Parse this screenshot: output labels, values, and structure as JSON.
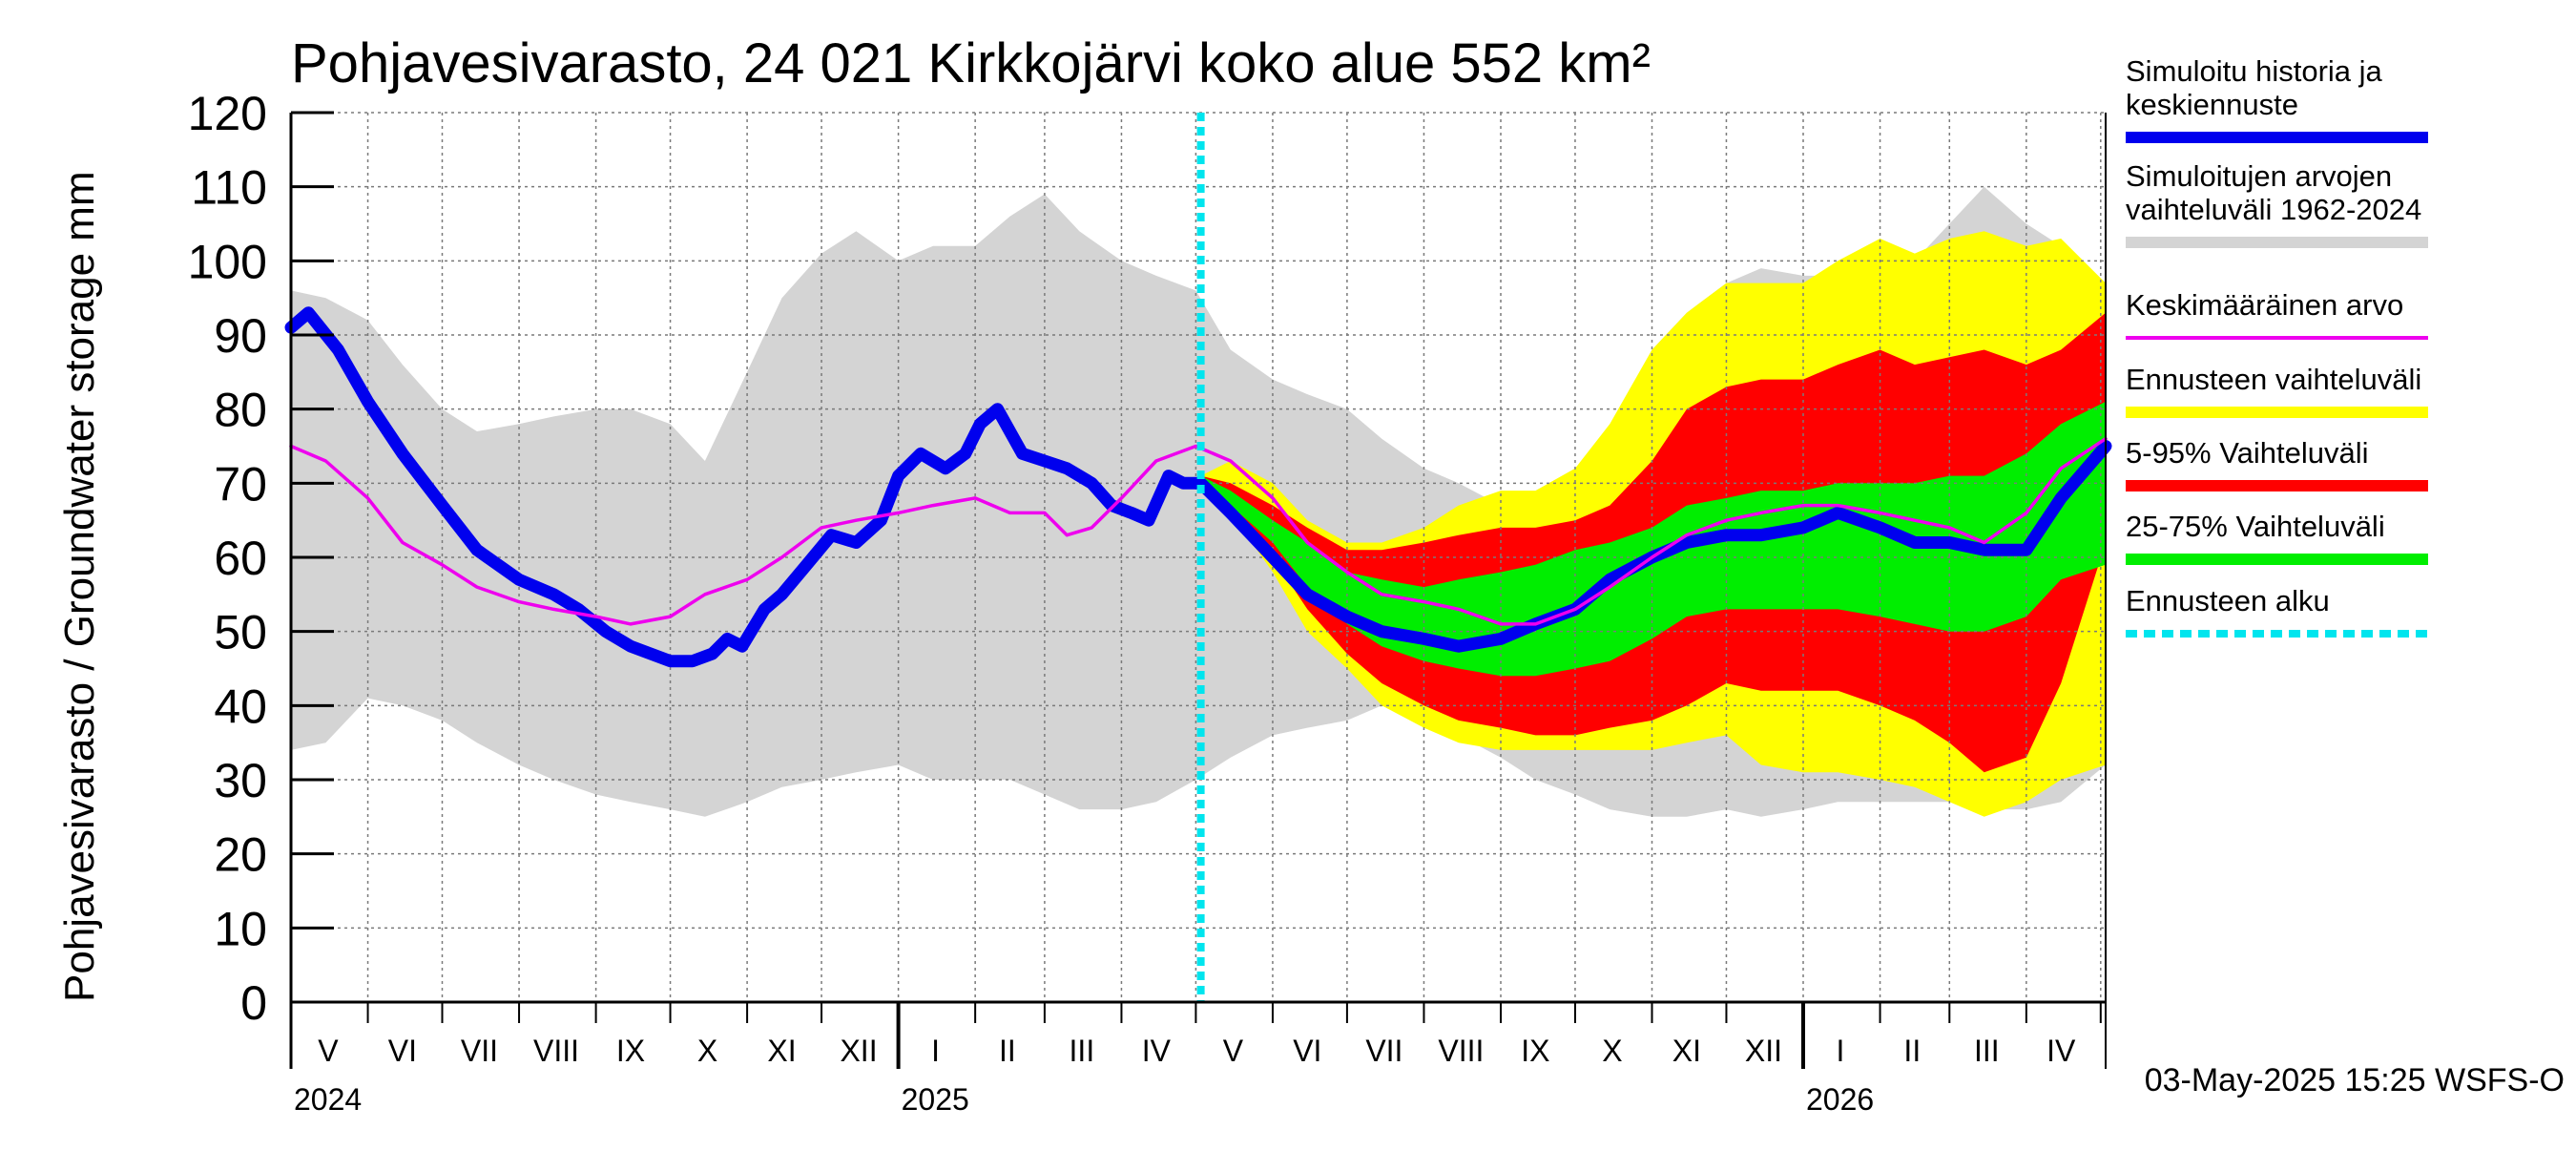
{
  "chart_data": {
    "type": "area",
    "title": "Pohjavesivarasto, 24 021 Kirkkojärvi koko alue 552 km²",
    "ylabel": "Pohjavesivarasto / Groundwater storage   mm",
    "ylim": [
      0,
      120
    ],
    "y_ticks": [
      "0",
      "10",
      "20",
      "30",
      "40",
      "50",
      "60",
      "70",
      "80",
      "90",
      "100",
      "110",
      "120"
    ],
    "grid": true,
    "legend_position": "right",
    "xlim": [
      "2024-05-01",
      "2026-05-03"
    ],
    "month_labels": [
      {
        "label": "V",
        "date": "2024-05-16"
      },
      {
        "label": "VI",
        "date": "2024-06-15"
      },
      {
        "label": "VII",
        "date": "2024-07-16"
      },
      {
        "label": "VIII",
        "date": "2024-08-16"
      },
      {
        "label": "IX",
        "date": "2024-09-15"
      },
      {
        "label": "X",
        "date": "2024-10-16"
      },
      {
        "label": "XI",
        "date": "2024-11-15"
      },
      {
        "label": "XII",
        "date": "2024-12-16"
      },
      {
        "label": "I",
        "date": "2025-01-16"
      },
      {
        "label": "II",
        "date": "2025-02-14"
      },
      {
        "label": "III",
        "date": "2025-03-16"
      },
      {
        "label": "IV",
        "date": "2025-04-15"
      },
      {
        "label": "V",
        "date": "2025-05-16"
      },
      {
        "label": "VI",
        "date": "2025-06-15"
      },
      {
        "label": "VII",
        "date": "2025-07-16"
      },
      {
        "label": "VIII",
        "date": "2025-08-16"
      },
      {
        "label": "IX",
        "date": "2025-09-15"
      },
      {
        "label": "X",
        "date": "2025-10-16"
      },
      {
        "label": "XI",
        "date": "2025-11-15"
      },
      {
        "label": "XII",
        "date": "2025-12-16"
      },
      {
        "label": "I",
        "date": "2026-01-16"
      },
      {
        "label": "II",
        "date": "2026-02-14"
      },
      {
        "label": "III",
        "date": "2026-03-16"
      },
      {
        "label": "IV",
        "date": "2026-04-15"
      }
    ],
    "month_boundaries": [
      "2024-06-01",
      "2024-07-01",
      "2024-08-01",
      "2024-09-01",
      "2024-10-01",
      "2024-11-01",
      "2024-12-01",
      "2025-01-01",
      "2025-02-01",
      "2025-03-01",
      "2025-04-01",
      "2025-05-01",
      "2025-06-01",
      "2025-07-01",
      "2025-08-01",
      "2025-09-01",
      "2025-10-01",
      "2025-11-01",
      "2025-12-01",
      "2026-01-01",
      "2026-02-01",
      "2026-03-01",
      "2026-04-01",
      "2026-05-01"
    ],
    "year_boundaries": [
      "2025-01-01",
      "2026-01-01"
    ],
    "year_labels": [
      {
        "label": "2024",
        "date": "2024-05-01"
      },
      {
        "label": "2025",
        "date": "2025-01-01"
      },
      {
        "label": "2026",
        "date": "2026-01-01"
      }
    ],
    "forecast_start": "2025-05-03",
    "timestamp": "03-May-2025 15:25 WSFS-O",
    "colors": {
      "history_band": "#d4d4d4",
      "forecast_range": "#ffff00",
      "p5_95": "#ff0000",
      "p25_75": "#00ee00",
      "simulated": "#0000ee",
      "mean": "#ee00ee",
      "forecast_start": "#00e5ee",
      "grid": "#7a7a7a"
    },
    "legend": [
      {
        "label": "Simuloitu historia ja\nkeskiennuste",
        "color": "#0000ee",
        "style": "thick"
      },
      {
        "label": "Simuloitujen arvojen\nvaihteluväli 1962-2024",
        "color": "#d4d4d4",
        "style": "thick"
      },
      {
        "label": "Keskimääräinen arvo",
        "color": "#ee00ee",
        "style": "thin"
      },
      {
        "label": "Ennusteen vaihteluväli",
        "color": "#ffff00",
        "style": "thick"
      },
      {
        "label": "5-95% Vaihteluväli",
        "color": "#ff0000",
        "style": "thick"
      },
      {
        "label": "25-75% Vaihteluväli",
        "color": "#00ee00",
        "style": "thick"
      },
      {
        "label": "Ennusteen alku",
        "color": "#00e5ee",
        "style": "dashed"
      }
    ],
    "series": [
      {
        "name": "Simuloitujen arvojen vaihteluväli 1962-2024",
        "type": "band",
        "x": [
          "2024-05-01",
          "2024-05-15",
          "2024-06-01",
          "2024-06-15",
          "2024-07-01",
          "2024-07-15",
          "2024-08-01",
          "2024-08-15",
          "2024-09-01",
          "2024-09-15",
          "2024-10-01",
          "2024-10-15",
          "2024-11-01",
          "2024-11-15",
          "2024-12-01",
          "2024-12-15",
          "2025-01-01",
          "2025-01-15",
          "2025-02-01",
          "2025-02-15",
          "2025-03-01",
          "2025-03-15",
          "2025-04-01",
          "2025-04-15",
          "2025-05-01",
          "2025-05-15",
          "2025-06-01",
          "2025-06-15",
          "2025-07-01",
          "2025-07-15",
          "2025-08-01",
          "2025-08-15",
          "2025-09-01",
          "2025-09-15",
          "2025-10-01",
          "2025-10-15",
          "2025-11-01",
          "2025-11-15",
          "2025-12-01",
          "2025-12-15",
          "2026-01-01",
          "2026-01-15",
          "2026-02-01",
          "2026-02-15",
          "2026-03-01",
          "2026-03-15",
          "2026-04-01",
          "2026-04-15",
          "2026-05-03"
        ],
        "lower": [
          34,
          35,
          41,
          40,
          38,
          35,
          32,
          30,
          28,
          27,
          26,
          25,
          27,
          29,
          30,
          31,
          32,
          30,
          30,
          30,
          28,
          26,
          26,
          27,
          30,
          33,
          36,
          37,
          38,
          40,
          38,
          36,
          33,
          30,
          28,
          26,
          25,
          25,
          26,
          25,
          26,
          27,
          27,
          27,
          27,
          26,
          26,
          27,
          32
        ],
        "upper": [
          96,
          95,
          92,
          86,
          80,
          77,
          78,
          79,
          80,
          80,
          78,
          73,
          85,
          95,
          101,
          104,
          100,
          102,
          102,
          106,
          109,
          104,
          100,
          98,
          96,
          88,
          84,
          82,
          80,
          76,
          72,
          70,
          67,
          66,
          68,
          76,
          88,
          93,
          97,
          99,
          98,
          98,
          97,
          100,
          105,
          110,
          105,
          102,
          97
        ]
      },
      {
        "name": "Ennusteen vaihteluväli",
        "type": "band",
        "x": [
          "2025-05-03",
          "2025-05-15",
          "2025-06-01",
          "2025-06-15",
          "2025-07-01",
          "2025-07-15",
          "2025-08-01",
          "2025-08-15",
          "2025-09-01",
          "2025-09-15",
          "2025-10-01",
          "2025-10-15",
          "2025-11-01",
          "2025-11-15",
          "2025-12-01",
          "2025-12-15",
          "2026-01-01",
          "2026-01-15",
          "2026-02-01",
          "2026-02-15",
          "2026-03-01",
          "2026-03-15",
          "2026-04-01",
          "2026-04-15",
          "2026-05-03"
        ],
        "lower": [
          70,
          66,
          58,
          50,
          45,
          40,
          37,
          35,
          34,
          34,
          34,
          34,
          34,
          35,
          36,
          32,
          31,
          31,
          30,
          29,
          27,
          25,
          27,
          30,
          32
        ],
        "upper": [
          71,
          73,
          70,
          65,
          62,
          62,
          64,
          67,
          69,
          69,
          72,
          78,
          88,
          93,
          97,
          97,
          97,
          100,
          103,
          101,
          103,
          104,
          102,
          103,
          97
        ]
      },
      {
        "name": "5-95% Vaihteluväli",
        "type": "band",
        "x": [
          "2025-05-03",
          "2025-05-15",
          "2025-06-01",
          "2025-06-15",
          "2025-07-01",
          "2025-07-15",
          "2025-08-01",
          "2025-08-15",
          "2025-09-01",
          "2025-09-15",
          "2025-10-01",
          "2025-10-15",
          "2025-11-01",
          "2025-11-15",
          "2025-12-01",
          "2025-12-15",
          "2026-01-01",
          "2026-01-15",
          "2026-02-01",
          "2026-02-15",
          "2026-03-01",
          "2026-03-15",
          "2026-04-01",
          "2026-04-15",
          "2026-05-03"
        ],
        "lower": [
          70,
          66,
          60,
          53,
          47,
          43,
          40,
          38,
          37,
          36,
          36,
          37,
          38,
          40,
          43,
          42,
          42,
          42,
          40,
          38,
          35,
          31,
          33,
          43,
          62
        ],
        "upper": [
          71,
          70,
          67,
          64,
          61,
          61,
          62,
          63,
          64,
          64,
          65,
          67,
          73,
          80,
          83,
          84,
          84,
          86,
          88,
          86,
          87,
          88,
          86,
          88,
          93
        ]
      },
      {
        "name": "25-75% Vaihteluväli",
        "type": "band",
        "x": [
          "2025-05-03",
          "2025-05-15",
          "2025-06-01",
          "2025-06-15",
          "2025-07-01",
          "2025-07-15",
          "2025-08-01",
          "2025-08-15",
          "2025-09-01",
          "2025-09-15",
          "2025-10-01",
          "2025-10-15",
          "2025-11-01",
          "2025-11-15",
          "2025-12-01",
          "2025-12-15",
          "2026-01-01",
          "2026-01-15",
          "2026-02-01",
          "2026-02-15",
          "2026-03-01",
          "2026-03-15",
          "2026-04-01",
          "2026-04-15",
          "2026-05-03"
        ],
        "lower": [
          70,
          67,
          62,
          56,
          51,
          48,
          46,
          45,
          44,
          44,
          45,
          46,
          49,
          52,
          53,
          53,
          53,
          53,
          52,
          51,
          50,
          50,
          52,
          57,
          59
        ],
        "upper": [
          71,
          69,
          65,
          62,
          58,
          57,
          56,
          57,
          58,
          59,
          61,
          62,
          64,
          67,
          68,
          69,
          69,
          70,
          70,
          70,
          71,
          71,
          74,
          78,
          81
        ]
      },
      {
        "name": "Simuloitu historia ja keskiennuste",
        "type": "line",
        "x": [
          "2024-05-01",
          "2024-05-08",
          "2024-05-20",
          "2024-06-01",
          "2024-06-15",
          "2024-07-01",
          "2024-07-15",
          "2024-08-01",
          "2024-08-15",
          "2024-08-25",
          "2024-09-05",
          "2024-09-15",
          "2024-10-01",
          "2024-10-10",
          "2024-10-18",
          "2024-10-24",
          "2024-10-30",
          "2024-11-08",
          "2024-11-15",
          "2024-11-25",
          "2024-12-05",
          "2024-12-15",
          "2024-12-25",
          "2025-01-01",
          "2025-01-10",
          "2025-01-20",
          "2025-01-28",
          "2025-02-03",
          "2025-02-10",
          "2025-02-20",
          "2025-03-01",
          "2025-03-10",
          "2025-03-20",
          "2025-03-28",
          "2025-04-05",
          "2025-04-12",
          "2025-04-20",
          "2025-04-26",
          "2025-05-03",
          "2025-05-15",
          "2025-06-01",
          "2025-06-15",
          "2025-07-01",
          "2025-07-15",
          "2025-08-01",
          "2025-08-15",
          "2025-09-01",
          "2025-09-15",
          "2025-10-01",
          "2025-10-15",
          "2025-11-01",
          "2025-11-15",
          "2025-12-01",
          "2025-12-15",
          "2026-01-01",
          "2026-01-15",
          "2026-02-01",
          "2026-02-15",
          "2026-03-01",
          "2026-03-15",
          "2026-04-01",
          "2026-04-15",
          "2026-05-03"
        ],
        "y": [
          91,
          93,
          88,
          81,
          74,
          67,
          61,
          57,
          55,
          53,
          50,
          48,
          46,
          46,
          47,
          49,
          48,
          53,
          55,
          59,
          63,
          62,
          65,
          71,
          74,
          72,
          74,
          78,
          80,
          74,
          73,
          72,
          70,
          67,
          66,
          65,
          71,
          70,
          70,
          66,
          60,
          55,
          52,
          50,
          49,
          48,
          49,
          51,
          53,
          57,
          60,
          62,
          63,
          63,
          64,
          66,
          64,
          62,
          62,
          61,
          61,
          68,
          75
        ]
      },
      {
        "name": "Keskimääräinen arvo",
        "type": "line",
        "x": [
          "2024-05-01",
          "2024-05-15",
          "2024-06-01",
          "2024-06-15",
          "2024-07-01",
          "2024-07-15",
          "2024-08-01",
          "2024-08-15",
          "2024-09-01",
          "2024-09-15",
          "2024-10-01",
          "2024-10-15",
          "2024-11-01",
          "2024-11-15",
          "2024-12-01",
          "2024-12-15",
          "2025-01-01",
          "2025-01-15",
          "2025-02-01",
          "2025-02-15",
          "2025-03-01",
          "2025-03-10",
          "2025-03-20",
          "2025-04-01",
          "2025-04-15",
          "2025-05-01",
          "2025-05-15",
          "2025-06-01",
          "2025-06-15",
          "2025-07-01",
          "2025-07-15",
          "2025-08-01",
          "2025-08-15",
          "2025-09-01",
          "2025-09-15",
          "2025-10-01",
          "2025-10-15",
          "2025-11-01",
          "2025-11-15",
          "2025-12-01",
          "2025-12-15",
          "2026-01-01",
          "2026-01-15",
          "2026-02-01",
          "2026-02-15",
          "2026-03-01",
          "2026-03-15",
          "2026-04-01",
          "2026-04-15",
          "2026-05-03"
        ],
        "y": [
          75,
          73,
          68,
          62,
          59,
          56,
          54,
          53,
          52,
          51,
          52,
          55,
          57,
          60,
          64,
          65,
          66,
          67,
          68,
          66,
          66,
          63,
          64,
          68,
          73,
          75,
          73,
          68,
          62,
          58,
          55,
          54,
          53,
          51,
          51,
          53,
          56,
          60,
          63,
          65,
          66,
          67,
          67,
          66,
          65,
          64,
          62,
          66,
          72,
          76
        ]
      }
    ]
  }
}
